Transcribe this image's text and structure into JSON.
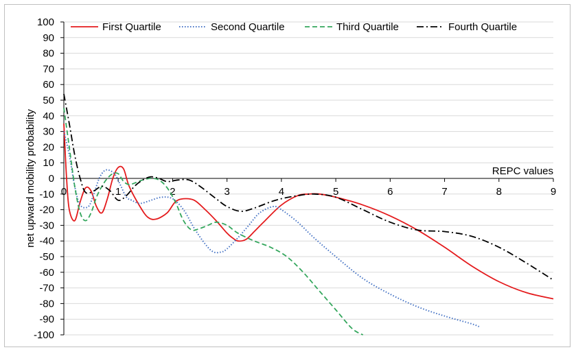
{
  "chart_data": {
    "type": "line",
    "title": "",
    "xlabel": "REPC values",
    "ylabel": "net upward mobility probability",
    "xlim": [
      0,
      9
    ],
    "ylim": [
      -100,
      100
    ],
    "x_ticks": [
      "0",
      "1",
      "2",
      "3",
      "4",
      "5",
      "6",
      "7",
      "8",
      "9"
    ],
    "y_ticks": [
      "100",
      "90",
      "80",
      "70",
      "60",
      "50",
      "40",
      "30",
      "20",
      "10",
      "0",
      "-10",
      "-20",
      "-30",
      "-40",
      "-50",
      "-60",
      "-70",
      "-80",
      "-90",
      "-100"
    ],
    "grid": "horizontal",
    "legend": "top",
    "series": [
      {
        "name": "First Quartile",
        "color": "#e41a1c",
        "dash": "solid",
        "points": [
          [
            0,
            35
          ],
          [
            0.05,
            0
          ],
          [
            0.1,
            -20
          ],
          [
            0.2,
            -27
          ],
          [
            0.3,
            -15
          ],
          [
            0.4,
            -6
          ],
          [
            0.5,
            -8
          ],
          [
            0.6,
            -18
          ],
          [
            0.7,
            -22
          ],
          [
            0.8,
            -13
          ],
          [
            0.9,
            0
          ],
          [
            1.0,
            7
          ],
          [
            1.1,
            6
          ],
          [
            1.2,
            -5
          ],
          [
            1.4,
            -18
          ],
          [
            1.55,
            -25
          ],
          [
            1.7,
            -26
          ],
          [
            1.9,
            -22
          ],
          [
            2.05,
            -15
          ],
          [
            2.2,
            -13
          ],
          [
            2.4,
            -14
          ],
          [
            2.6,
            -20
          ],
          [
            2.8,
            -27
          ],
          [
            3.0,
            -35
          ],
          [
            3.1,
            -38
          ],
          [
            3.2,
            -40
          ],
          [
            3.35,
            -39
          ],
          [
            3.5,
            -34
          ],
          [
            3.7,
            -27
          ],
          [
            4.0,
            -17
          ],
          [
            4.3,
            -11
          ],
          [
            4.5,
            -10
          ],
          [
            4.7,
            -10
          ],
          [
            5.0,
            -12
          ],
          [
            5.5,
            -17
          ],
          [
            6.0,
            -24
          ],
          [
            6.5,
            -33
          ],
          [
            7.0,
            -44
          ],
          [
            7.5,
            -56
          ],
          [
            8.0,
            -66
          ],
          [
            8.5,
            -73
          ],
          [
            9.0,
            -77
          ]
        ]
      },
      {
        "name": "Second Quartile",
        "color": "#4472c4",
        "dash": "dotted",
        "points": [
          [
            0,
            30
          ],
          [
            0.1,
            15
          ],
          [
            0.2,
            -5
          ],
          [
            0.3,
            -17
          ],
          [
            0.45,
            -18
          ],
          [
            0.55,
            -10
          ],
          [
            0.65,
            0
          ],
          [
            0.75,
            5
          ],
          [
            0.85,
            5
          ],
          [
            0.95,
            2
          ],
          [
            1.05,
            -5
          ],
          [
            1.15,
            -12
          ],
          [
            1.25,
            -14
          ],
          [
            1.4,
            -16
          ],
          [
            1.6,
            -14
          ],
          [
            1.8,
            -12
          ],
          [
            2.0,
            -13
          ],
          [
            2.2,
            -20
          ],
          [
            2.4,
            -32
          ],
          [
            2.6,
            -42
          ],
          [
            2.75,
            -47
          ],
          [
            2.9,
            -47
          ],
          [
            3.0,
            -45
          ],
          [
            3.2,
            -38
          ],
          [
            3.4,
            -30
          ],
          [
            3.6,
            -22
          ],
          [
            3.85,
            -18
          ],
          [
            4.0,
            -20
          ],
          [
            4.3,
            -28
          ],
          [
            4.6,
            -38
          ],
          [
            5.0,
            -50
          ],
          [
            5.5,
            -64
          ],
          [
            6.0,
            -74
          ],
          [
            6.5,
            -82
          ],
          [
            7.0,
            -88
          ],
          [
            7.5,
            -93
          ],
          [
            7.65,
            -95
          ]
        ]
      },
      {
        "name": "Third Quartile",
        "color": "#33a65c",
        "dash": "dashed",
        "points": [
          [
            0,
            45
          ],
          [
            0.1,
            20
          ],
          [
            0.2,
            -5
          ],
          [
            0.3,
            -22
          ],
          [
            0.4,
            -27
          ],
          [
            0.5,
            -22
          ],
          [
            0.6,
            -12
          ],
          [
            0.7,
            -5
          ],
          [
            0.8,
            0
          ],
          [
            0.9,
            3
          ],
          [
            1.0,
            3
          ],
          [
            1.1,
            -2
          ],
          [
            1.2,
            -4
          ],
          [
            1.3,
            -3
          ],
          [
            1.45,
            -1
          ],
          [
            1.6,
            0
          ],
          [
            1.75,
            -1
          ],
          [
            1.9,
            -6
          ],
          [
            2.05,
            -15
          ],
          [
            2.2,
            -27
          ],
          [
            2.35,
            -33
          ],
          [
            2.5,
            -32
          ],
          [
            2.65,
            -30
          ],
          [
            2.8,
            -28
          ],
          [
            3.0,
            -30
          ],
          [
            3.2,
            -35
          ],
          [
            3.5,
            -40
          ],
          [
            3.8,
            -44
          ],
          [
            4.1,
            -50
          ],
          [
            4.4,
            -60
          ],
          [
            4.7,
            -72
          ],
          [
            5.0,
            -84
          ],
          [
            5.3,
            -96
          ],
          [
            5.5,
            -100
          ]
        ]
      },
      {
        "name": "Fourth Quartile",
        "color": "#000000",
        "dash": "dashdot",
        "points": [
          [
            0,
            54
          ],
          [
            0.1,
            35
          ],
          [
            0.2,
            15
          ],
          [
            0.3,
            0
          ],
          [
            0.4,
            -9
          ],
          [
            0.55,
            -8
          ],
          [
            0.7,
            -5
          ],
          [
            0.85,
            -8
          ],
          [
            1.0,
            -14
          ],
          [
            1.15,
            -11
          ],
          [
            1.3,
            -5
          ],
          [
            1.45,
            -1
          ],
          [
            1.6,
            1
          ],
          [
            1.75,
            0
          ],
          [
            1.9,
            -2
          ],
          [
            2.1,
            -1
          ],
          [
            2.3,
            -1
          ],
          [
            2.5,
            -5
          ],
          [
            2.8,
            -13
          ],
          [
            3.0,
            -18
          ],
          [
            3.25,
            -21
          ],
          [
            3.5,
            -19
          ],
          [
            3.8,
            -15
          ],
          [
            4.0,
            -13
          ],
          [
            4.3,
            -11
          ],
          [
            4.6,
            -10
          ],
          [
            5.0,
            -12
          ],
          [
            5.5,
            -20
          ],
          [
            6.0,
            -28
          ],
          [
            6.5,
            -33
          ],
          [
            7.0,
            -34
          ],
          [
            7.5,
            -37
          ],
          [
            8.0,
            -44
          ],
          [
            8.5,
            -54
          ],
          [
            9.0,
            -65
          ]
        ]
      }
    ]
  }
}
